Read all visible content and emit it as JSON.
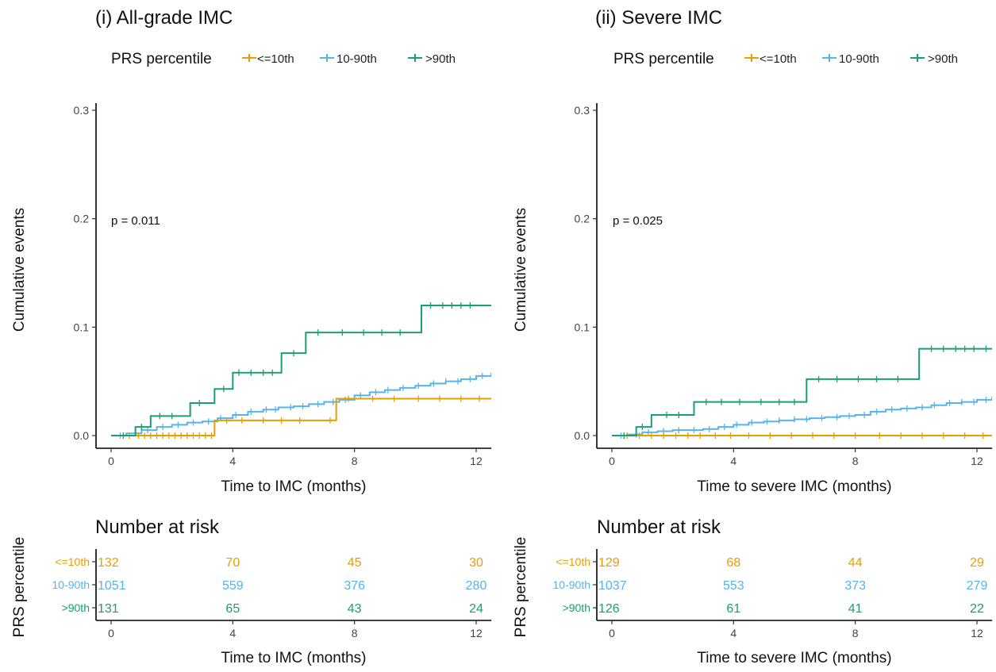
{
  "chart_data": [
    {
      "type": "line",
      "title": "(i) All-grade IMC",
      "legend": {
        "title": "PRS percentile",
        "placement": "top-left",
        "entries": [
          "<=10th",
          "10-90th",
          ">90th"
        ]
      },
      "p_value_label": "p = 0.011",
      "xlabel": "Time to IMC (months)",
      "ylabel": "Cumulative events",
      "xlim": [
        0,
        12.5
      ],
      "ylim": [
        0,
        0.31
      ],
      "x_ticks": [
        0,
        4,
        8,
        12
      ],
      "y_ticks": [
        0.0,
        0.1,
        0.2,
        0.3
      ],
      "y_tick_labels": [
        "0.0",
        "0.1",
        "0.2",
        "0.3"
      ],
      "grid": false,
      "series": [
        {
          "name": "<=10th",
          "color": "#E69F00",
          "steps": [
            [
              0,
              0
            ],
            [
              3.4,
              0
            ],
            [
              3.4,
              0.014
            ],
            [
              7.4,
              0.014
            ],
            [
              7.4,
              0.034
            ],
            [
              12.5,
              0.034
            ]
          ],
          "censor_times": [
            0.6,
            0.9,
            1.1,
            1.3,
            1.5,
            1.7,
            1.9,
            2.1,
            2.3,
            2.5,
            2.7,
            2.9,
            3.1,
            3.3,
            3.8,
            4.3,
            5.0,
            5.6,
            6.2,
            7.2,
            7.8,
            8.6,
            9.3,
            10.1,
            10.8,
            11.5,
            12.1
          ]
        },
        {
          "name": "10-90th",
          "color": "#56B4E9",
          "steps": [
            [
              0,
              0
            ],
            [
              0.5,
              0.002
            ],
            [
              1.0,
              0.005
            ],
            [
              1.5,
              0.008
            ],
            [
              2.0,
              0.01
            ],
            [
              2.5,
              0.012
            ],
            [
              3.0,
              0.013
            ],
            [
              3.5,
              0.016
            ],
            [
              4.0,
              0.019
            ],
            [
              4.5,
              0.022
            ],
            [
              5.0,
              0.024
            ],
            [
              5.5,
              0.026
            ],
            [
              6.0,
              0.027
            ],
            [
              6.5,
              0.029
            ],
            [
              7.0,
              0.031
            ],
            [
              7.5,
              0.033
            ],
            [
              8.0,
              0.037
            ],
            [
              8.5,
              0.04
            ],
            [
              9.0,
              0.042
            ],
            [
              9.5,
              0.044
            ],
            [
              10.0,
              0.046
            ],
            [
              10.5,
              0.048
            ],
            [
              11.0,
              0.05
            ],
            [
              11.5,
              0.052
            ],
            [
              12.0,
              0.055
            ],
            [
              12.5,
              0.058
            ]
          ],
          "censor_times": [
            0.3,
            0.8,
            1.2,
            1.7,
            2.2,
            2.7,
            3.2,
            3.6,
            4.1,
            4.6,
            5.1,
            5.4,
            5.9,
            6.3,
            6.8,
            7.3,
            7.7,
            8.2,
            8.7,
            9.1,
            9.6,
            10.1,
            10.6,
            11.0,
            11.4,
            11.8,
            12.2
          ]
        },
        {
          "name": ">90th",
          "color": "#1A9E76",
          "steps": [
            [
              0,
              0
            ],
            [
              0.8,
              0
            ],
            [
              0.8,
              0.008
            ],
            [
              1.3,
              0.008
            ],
            [
              1.3,
              0.018
            ],
            [
              2.6,
              0.018
            ],
            [
              2.6,
              0.03
            ],
            [
              3.4,
              0.03
            ],
            [
              3.4,
              0.043
            ],
            [
              4.0,
              0.043
            ],
            [
              4.0,
              0.058
            ],
            [
              5.6,
              0.058
            ],
            [
              5.6,
              0.076
            ],
            [
              6.4,
              0.076
            ],
            [
              6.4,
              0.095
            ],
            [
              10.2,
              0.095
            ],
            [
              10.2,
              0.12
            ],
            [
              12.5,
              0.12
            ]
          ],
          "censor_times": [
            0.4,
            1.0,
            1.6,
            2.0,
            2.9,
            3.7,
            4.2,
            4.6,
            5.0,
            5.3,
            6.0,
            6.8,
            7.6,
            8.3,
            8.9,
            9.5,
            10.5,
            10.9,
            11.2,
            11.5,
            11.8
          ]
        }
      ]
    },
    {
      "type": "line",
      "title": "(ii) Severe IMC",
      "legend": {
        "title": "PRS percentile",
        "placement": "top-left",
        "entries": [
          "<=10th",
          "10-90th",
          ">90th"
        ]
      },
      "p_value_label": "p = 0.025",
      "xlabel": "Time to severe IMC (months)",
      "ylabel": "Cumulative events",
      "xlim": [
        0,
        12.5
      ],
      "ylim": [
        0,
        0.31
      ],
      "x_ticks": [
        0,
        4,
        8,
        12
      ],
      "y_ticks": [
        0.0,
        0.1,
        0.2,
        0.3
      ],
      "y_tick_labels": [
        "0.0",
        "0.1",
        "0.2",
        "0.3"
      ],
      "grid": false,
      "series": [
        {
          "name": "<=10th",
          "color": "#E69F00",
          "steps": [
            [
              0,
              0
            ],
            [
              12.5,
              0
            ]
          ],
          "censor_times": [
            0.5,
            0.9,
            1.3,
            1.7,
            2.1,
            2.5,
            2.9,
            3.4,
            3.9,
            4.5,
            5.2,
            5.9,
            6.6,
            7.3,
            8.0,
            8.8,
            9.5,
            10.2,
            10.9,
            11.6,
            12.2
          ]
        },
        {
          "name": "10-90th",
          "color": "#56B4E9",
          "steps": [
            [
              0,
              0
            ],
            [
              0.5,
              0.001
            ],
            [
              1.0,
              0.003
            ],
            [
              1.5,
              0.004
            ],
            [
              2.0,
              0.005
            ],
            [
              2.5,
              0.005
            ],
            [
              3.0,
              0.006
            ],
            [
              3.5,
              0.008
            ],
            [
              4.0,
              0.01
            ],
            [
              4.5,
              0.012
            ],
            [
              5.0,
              0.013
            ],
            [
              5.5,
              0.014
            ],
            [
              6.0,
              0.015
            ],
            [
              6.5,
              0.016
            ],
            [
              7.0,
              0.017
            ],
            [
              7.5,
              0.018
            ],
            [
              8.0,
              0.019
            ],
            [
              8.5,
              0.022
            ],
            [
              9.0,
              0.024
            ],
            [
              9.5,
              0.025
            ],
            [
              10.0,
              0.026
            ],
            [
              10.5,
              0.028
            ],
            [
              11.0,
              0.03
            ],
            [
              11.5,
              0.031
            ],
            [
              12.0,
              0.033
            ],
            [
              12.5,
              0.036
            ]
          ],
          "censor_times": [
            0.3,
            0.8,
            1.2,
            1.7,
            2.2,
            2.7,
            3.2,
            3.7,
            4.1,
            4.6,
            5.1,
            5.5,
            6.0,
            6.4,
            6.9,
            7.4,
            7.8,
            8.3,
            8.7,
            9.2,
            9.7,
            10.2,
            10.6,
            11.1,
            11.5,
            11.9,
            12.3
          ]
        },
        {
          "name": ">90th",
          "color": "#1A9E76",
          "steps": [
            [
              0,
              0
            ],
            [
              0.8,
              0
            ],
            [
              0.8,
              0.008
            ],
            [
              1.3,
              0.008
            ],
            [
              1.3,
              0.019
            ],
            [
              2.7,
              0.019
            ],
            [
              2.7,
              0.031
            ],
            [
              6.4,
              0.031
            ],
            [
              6.4,
              0.052
            ],
            [
              10.1,
              0.052
            ],
            [
              10.1,
              0.08
            ],
            [
              12.5,
              0.08
            ]
          ],
          "censor_times": [
            0.4,
            1.0,
            1.8,
            2.2,
            3.1,
            3.6,
            4.2,
            4.9,
            5.5,
            6.0,
            6.8,
            7.4,
            8.1,
            8.7,
            9.4,
            10.5,
            10.9,
            11.3,
            11.6,
            11.9,
            12.3
          ]
        }
      ]
    },
    {
      "type": "table",
      "title": "Number at risk",
      "xlabel": "Time to IMC (months)",
      "ylabel": "PRS percentile",
      "x_ticks": [
        0,
        4,
        8,
        12
      ],
      "rows": [
        {
          "name": "<=10th",
          "color": "#E69F00",
          "values": [
            132,
            70,
            45,
            30
          ]
        },
        {
          "name": "10-90th",
          "color": "#56B4E9",
          "values": [
            1051,
            559,
            376,
            280
          ]
        },
        {
          "name": ">90th",
          "color": "#1A9E76",
          "values": [
            131,
            65,
            43,
            24
          ]
        }
      ]
    },
    {
      "type": "table",
      "title": "Number at risk",
      "xlabel": "Time to severe IMC (months)",
      "ylabel": "PRS percentile",
      "x_ticks": [
        0,
        4,
        8,
        12
      ],
      "rows": [
        {
          "name": "<=10th",
          "color": "#E69F00",
          "values": [
            129,
            68,
            44,
            29
          ]
        },
        {
          "name": "10-90th",
          "color": "#56B4E9",
          "values": [
            1037,
            553,
            373,
            279
          ]
        },
        {
          "name": ">90th",
          "color": "#1A9E76",
          "values": [
            126,
            61,
            41,
            22
          ]
        }
      ]
    }
  ]
}
